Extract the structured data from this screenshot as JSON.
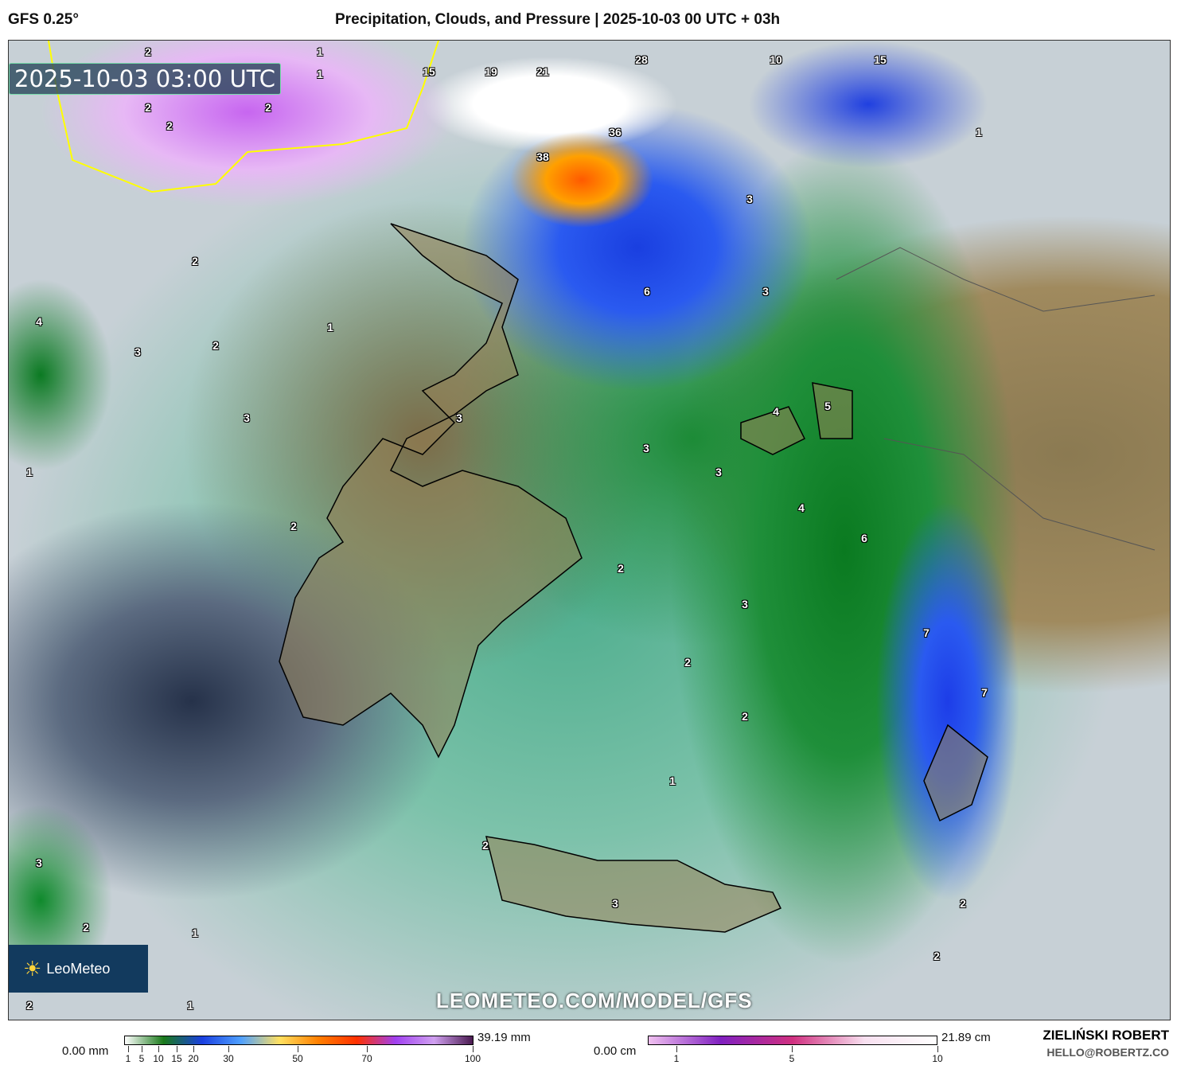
{
  "header": {
    "model": "GFS 0.25°",
    "title": "Precipitation, Clouds, and Pressure | 2025-10-03 00 UTC + 03h"
  },
  "map": {
    "timestamp": "2025-10-03 03:00 UTC",
    "logo": "LeoMeteo",
    "url": "LEOMETEO.COM/MODEL/GFS",
    "labels": [
      "2",
      "2",
      "1",
      "1",
      "15",
      "19",
      "21",
      "28",
      "10",
      "15",
      "2",
      "2",
      "36",
      "38",
      "1",
      "3",
      "2",
      "6",
      "3",
      "4",
      "1",
      "2",
      "3",
      "4",
      "5",
      "3",
      "3",
      "3",
      "3",
      "1",
      "4",
      "2",
      "6",
      "2",
      "3",
      "7",
      "2",
      "7",
      "2",
      "1",
      "2",
      "3",
      "3",
      "2",
      "2",
      "1",
      "2",
      "2",
      "1"
    ]
  },
  "legend": {
    "rain": {
      "min": "0.00 mm",
      "max": "39.19 mm",
      "ticks": [
        "1",
        "5",
        "10",
        "15",
        "20",
        "30",
        "50",
        "70",
        "100"
      ],
      "colors": [
        "#1a7a1a",
        "#1a3fe0",
        "#4fa0ff",
        "#ffe060",
        "#ff8000",
        "#ff3000",
        "#a040f0",
        "#d0a0f0",
        "#4a1a50"
      ]
    },
    "snow": {
      "min": "0.00 cm",
      "max": "21.89 cm",
      "ticks": [
        "1",
        "5",
        "10"
      ],
      "colors": [
        "#f0c0f0",
        "#8020c0",
        "#d03080",
        "#f8e0f0",
        "#ffffff"
      ]
    }
  },
  "credit": {
    "name": "ZIELIŃSKI ROBERT",
    "email": "HELLO@ROBERTZ.CO"
  }
}
